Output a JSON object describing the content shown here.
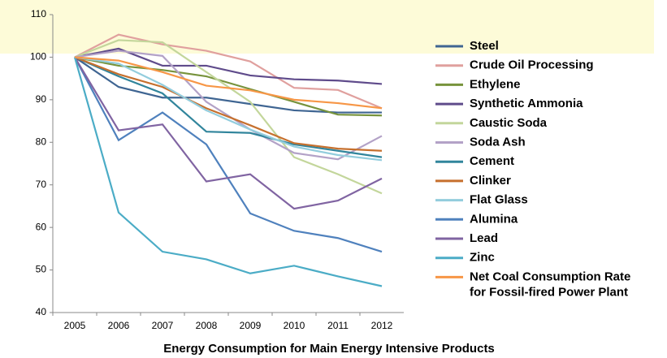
{
  "chart_data": {
    "type": "line",
    "title": "Energy Consumption for Main Energy Intensive Products",
    "categories": [
      "2005",
      "2006",
      "2007",
      "2008",
      "2009",
      "2010",
      "2011",
      "2012"
    ],
    "ylim": [
      40,
      110
    ],
    "yticks": [
      40,
      50,
      60,
      70,
      80,
      90,
      100,
      110
    ],
    "grid": false,
    "legend": "right",
    "series": [
      {
        "name": "Steel",
        "color": "#3f6592",
        "values": [
          100,
          93,
          90.5,
          90.5,
          89,
          87.5,
          87,
          87
        ]
      },
      {
        "name": "Crude Oil Processing",
        "color": "#e0a09e",
        "values": [
          100,
          105.3,
          103,
          101.5,
          99,
          92.8,
          92.3,
          88
        ]
      },
      {
        "name": "Ethylene",
        "color": "#77933c",
        "values": [
          100,
          98,
          97,
          95.5,
          92.5,
          89.5,
          86.5,
          86.3
        ]
      },
      {
        "name": "Synthetic Ammonia",
        "color": "#5f4b8b",
        "values": [
          100,
          102,
          98,
          98,
          95.7,
          94.8,
          94.5,
          93.7
        ]
      },
      {
        "name": "Caustic Soda",
        "color": "#c3d69b",
        "values": [
          100,
          104,
          103.5,
          96.5,
          89.5,
          76.5,
          72.5,
          68
        ]
      },
      {
        "name": "Soda Ash",
        "color": "#b3a2c7",
        "values": [
          100,
          101.5,
          100.3,
          89.5,
          83,
          77.5,
          76,
          81.5
        ]
      },
      {
        "name": "Cement",
        "color": "#31859c",
        "values": [
          100,
          95.5,
          91.5,
          82.5,
          82.2,
          79.5,
          78,
          76.5
        ]
      },
      {
        "name": "Clinker",
        "color": "#c6702e",
        "values": [
          100,
          96,
          93,
          88,
          84,
          79.8,
          78.5,
          78
        ]
      },
      {
        "name": "Flat Glass",
        "color": "#93cddd",
        "values": [
          100,
          98.5,
          93.5,
          87.5,
          83,
          79,
          77,
          75.8
        ]
      },
      {
        "name": "Alumina",
        "color": "#4f81bd",
        "values": [
          100,
          80.5,
          87,
          79.5,
          63.3,
          59.2,
          57.5,
          54.3
        ]
      },
      {
        "name": "Lead",
        "color": "#8064a2",
        "values": [
          100,
          82.8,
          84.2,
          70.8,
          72.5,
          64.4,
          66.3,
          71.5
        ]
      },
      {
        "name": "Zinc",
        "color": "#4bacc6",
        "values": [
          100,
          63.5,
          54.3,
          52.5,
          49.2,
          51,
          48.5,
          46.2
        ]
      },
      {
        "name": "Net Coal Consumption Rate for Fossil-fired Power Plant",
        "color": "#f79646",
        "values": [
          100,
          99.2,
          96.5,
          93.3,
          92.2,
          90,
          89.2,
          88
        ]
      }
    ]
  }
}
